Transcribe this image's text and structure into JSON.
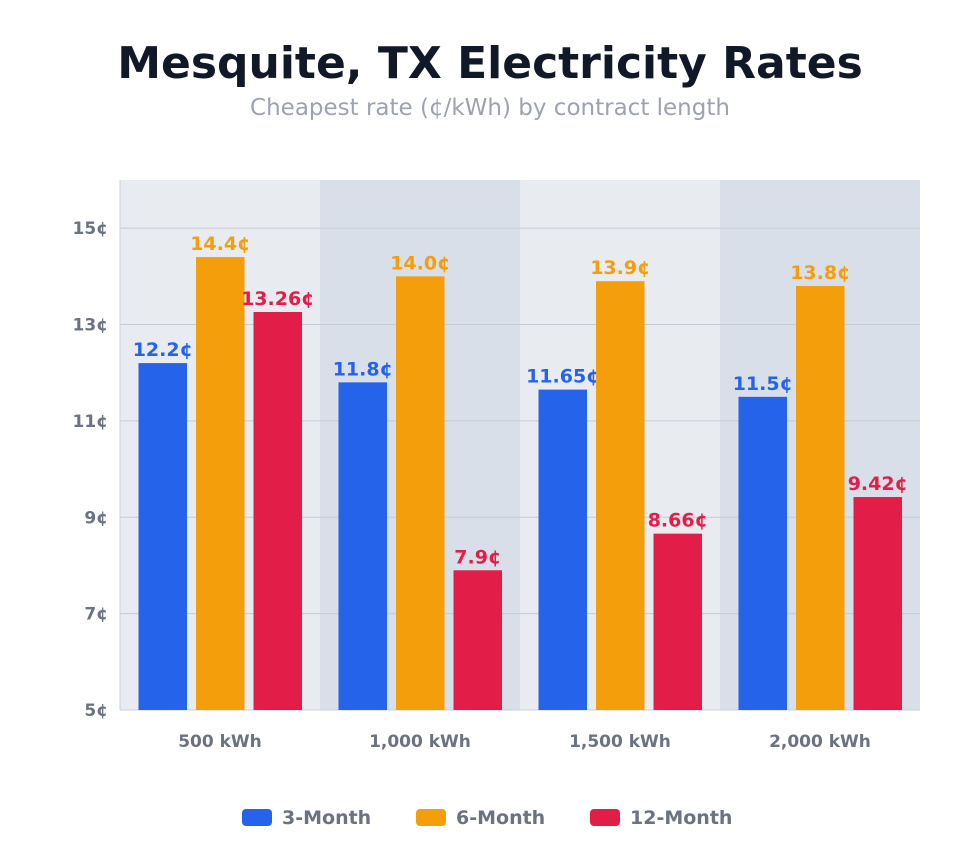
{
  "chart_data": {
    "type": "bar",
    "title": "Mesquite, TX Electricity Rates",
    "subtitle": "Cheapest rate (¢/kWh) by contract length",
    "categories": [
      "500 kWh",
      "1,000 kWh",
      "1,500 kWh",
      "2,000 kWh"
    ],
    "series": [
      {
        "name": "3-Month",
        "color": "#2563eb",
        "values": [
          12.2,
          11.8,
          11.65,
          11.5
        ],
        "labels": [
          "12.2¢",
          "11.8¢",
          "11.65¢",
          "11.5¢"
        ]
      },
      {
        "name": "6-Month",
        "color": "#f59e0b",
        "values": [
          14.4,
          14.0,
          13.9,
          13.8
        ],
        "labels": [
          "14.4¢",
          "14.0¢",
          "13.9¢",
          "13.8¢"
        ]
      },
      {
        "name": "12-Month",
        "color": "#e11d48",
        "values": [
          13.26,
          7.9,
          8.66,
          9.42
        ],
        "labels": [
          "13.26¢",
          "7.9¢",
          "8.66¢",
          "9.42¢"
        ]
      }
    ],
    "ylim": [
      5,
      16
    ],
    "yticks": [
      5,
      7,
      9,
      11,
      13,
      15
    ],
    "ytick_labels": [
      "5¢",
      "7¢",
      "9¢",
      "11¢",
      "13¢",
      "15¢"
    ],
    "grid": true,
    "legend": "bottom",
    "band_colors": [
      "#e8ebf0",
      "#d9dfe8"
    ]
  }
}
